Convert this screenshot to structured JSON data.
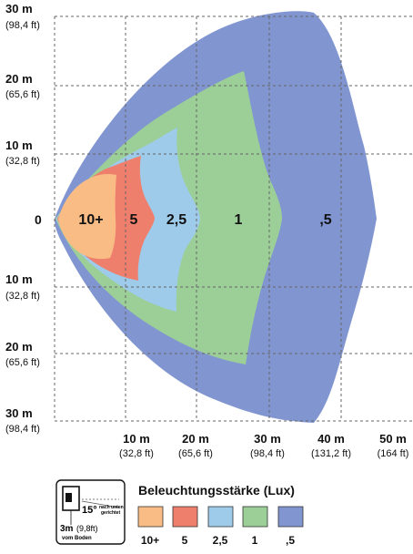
{
  "y_axis": [
    {
      "main": "30 m",
      "sub": "(98,4 ft)"
    },
    {
      "main": "20 m",
      "sub": "(65,6 ft)"
    },
    {
      "main": "10 m",
      "sub": "(32,8 ft)"
    },
    {
      "main": "0",
      "sub": ""
    },
    {
      "main": "10 m",
      "sub": "(32,8 ft)"
    },
    {
      "main": "20 m",
      "sub": "(65,6 ft)"
    },
    {
      "main": "30 m",
      "sub": "(98,4 ft)"
    }
  ],
  "x_axis": [
    {
      "main": "10 m",
      "sub": "(32,8 ft)"
    },
    {
      "main": "20 m",
      "sub": "(65,6 ft)"
    },
    {
      "main": "30 m",
      "sub": "(98,4 ft)"
    },
    {
      "main": "40 m",
      "sub": "(131,2 ft)"
    },
    {
      "main": "50 m",
      "sub": "(164 ft)"
    }
  ],
  "zones": [
    {
      "label": "10+",
      "color": "#f8bc84"
    },
    {
      "label": "5",
      "color": "#ef7f6d"
    },
    {
      "label": "2,5",
      "color": "#9ecbea"
    },
    {
      "label": "1",
      "color": "#9ccf98"
    },
    {
      "label": ",5",
      "color": "#8196d0"
    }
  ],
  "legend": {
    "title": "Beleuchtungsstärke (Lux)"
  },
  "mount_icon": {
    "angle": "15°",
    "angle_note_1": "nach unten",
    "angle_note_2": "gerichtet",
    "height_main": "3m",
    "height_sub": "(9,8ft)",
    "height_note": "vom Boden"
  }
}
